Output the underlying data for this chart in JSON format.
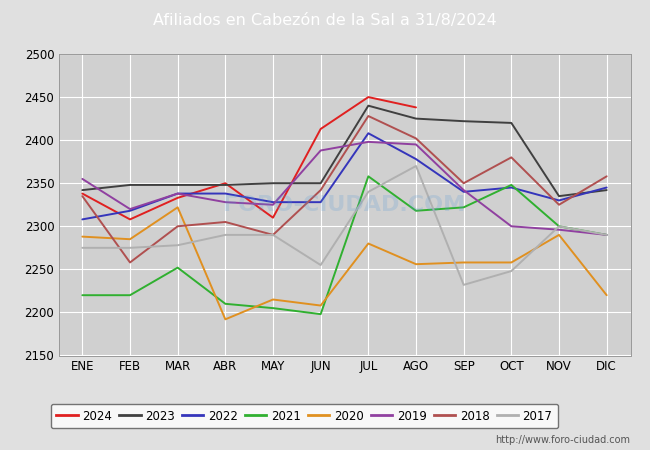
{
  "title": "Afiliados en Cabezón de la Sal a 31/8/2024",
  "title_bg_color": "#5b9bd5",
  "title_text_color": "white",
  "xlim_min": -0.5,
  "xlim_max": 11.5,
  "ylim": [
    2150,
    2500
  ],
  "yticks": [
    2150,
    2200,
    2250,
    2300,
    2350,
    2400,
    2450,
    2500
  ],
  "xtick_labels": [
    "ENE",
    "FEB",
    "MAR",
    "ABR",
    "MAY",
    "JUN",
    "JUL",
    "AGO",
    "SEP",
    "OCT",
    "NOV",
    "DIC"
  ],
  "background_color": "#e0e0e0",
  "plot_bg_color": "#d0d0d0",
  "grid_color": "#ffffff",
  "watermark": "FORO-CIUDAD.COM",
  "url": "http://www.foro-ciudad.com",
  "series": {
    "2024": {
      "color": "#e02020",
      "data": [
        2338,
        2308,
        2333,
        2350,
        2310,
        2413,
        2450,
        2438,
        null,
        null,
        null,
        null
      ]
    },
    "2023": {
      "color": "#404040",
      "data": [
        2342,
        2348,
        2348,
        2348,
        2350,
        2350,
        2440,
        2425,
        2422,
        2420,
        2335,
        2342
      ]
    },
    "2022": {
      "color": "#3535bb",
      "data": [
        2308,
        2318,
        2338,
        2338,
        2328,
        2328,
        2408,
        2378,
        2340,
        2345,
        2330,
        2345
      ]
    },
    "2021": {
      "color": "#30b030",
      "data": [
        2220,
        2220,
        2252,
        2210,
        2205,
        2198,
        2358,
        2318,
        2322,
        2348,
        2300,
        2290
      ]
    },
    "2020": {
      "color": "#e09020",
      "data": [
        2288,
        2285,
        2322,
        2192,
        2215,
        2208,
        2280,
        2256,
        2258,
        2258,
        2290,
        2220
      ]
    },
    "2019": {
      "color": "#9040a0",
      "data": [
        2355,
        2320,
        2338,
        2328,
        2325,
        2388,
        2398,
        2395,
        2342,
        2300,
        2296,
        2290
      ]
    },
    "2018": {
      "color": "#b05050",
      "data": [
        2335,
        2258,
        2300,
        2305,
        2290,
        2342,
        2428,
        2402,
        2350,
        2380,
        2325,
        2358
      ]
    },
    "2017": {
      "color": "#b0b0b0",
      "data": [
        2275,
        2275,
        2278,
        2290,
        2290,
        2255,
        2340,
        2370,
        2232,
        2248,
        2300,
        2290
      ]
    }
  },
  "legend_order": [
    "2024",
    "2023",
    "2022",
    "2021",
    "2020",
    "2019",
    "2018",
    "2017"
  ],
  "legend_bg": "#ffffff",
  "legend_border": "#555555"
}
